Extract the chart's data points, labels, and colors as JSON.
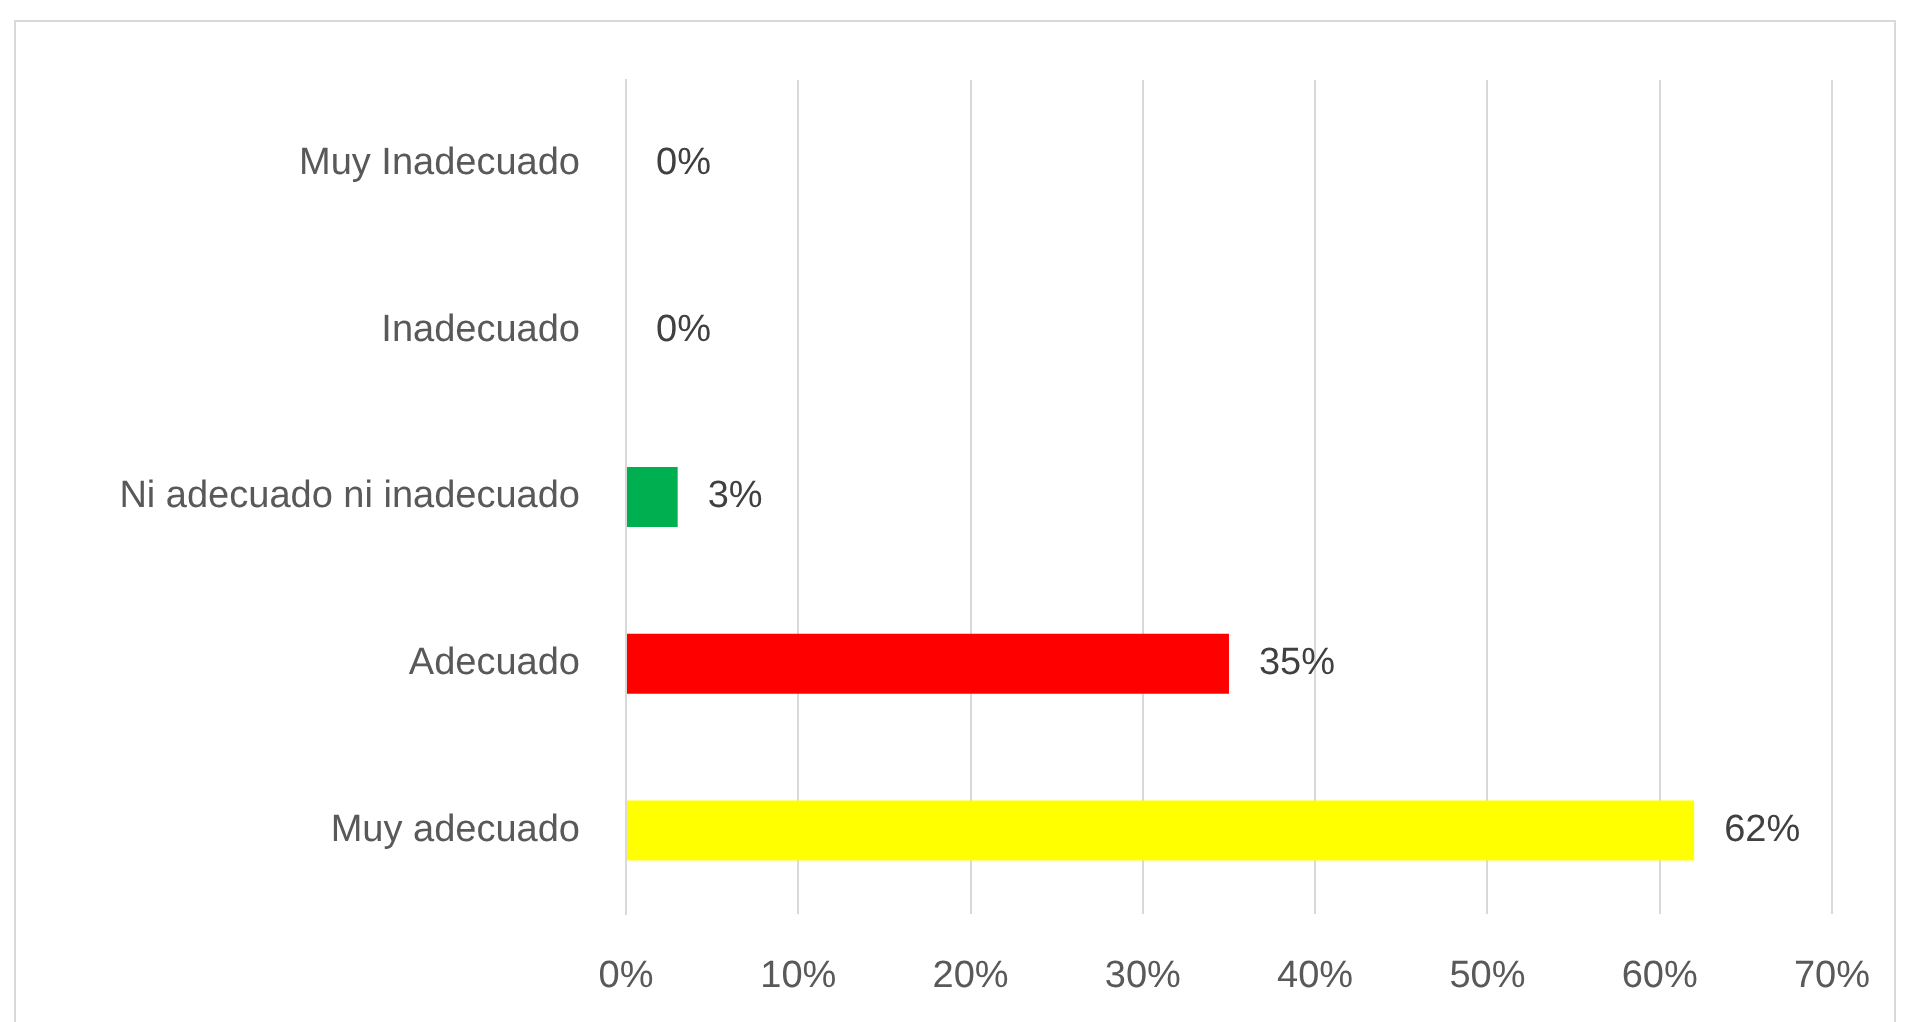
{
  "chart_data": {
    "type": "bar",
    "orientation": "horizontal",
    "categories": [
      "Muy Inadecuado",
      "Inadecuado",
      "Ni adecuado ni inadecuado",
      "Adecuado",
      "Muy adecuado"
    ],
    "values": [
      0,
      0,
      3,
      35,
      62
    ],
    "colors": [
      null,
      null,
      "#00b050",
      "#ff0000",
      "#ffff00"
    ],
    "value_labels": [
      "0%",
      "0%",
      "3%",
      "35%",
      "62%"
    ],
    "xlim": [
      0,
      70
    ],
    "xticks": [
      {
        "value": 0,
        "label": "0%"
      },
      {
        "value": 10,
        "label": "10%"
      },
      {
        "value": 20,
        "label": "20%"
      },
      {
        "value": 30,
        "label": "30%"
      },
      {
        "value": 40,
        "label": "40%"
      },
      {
        "value": 50,
        "label": "50%"
      },
      {
        "value": 60,
        "label": "60%"
      },
      {
        "value": 70,
        "label": "70%"
      }
    ],
    "grid": "x"
  }
}
